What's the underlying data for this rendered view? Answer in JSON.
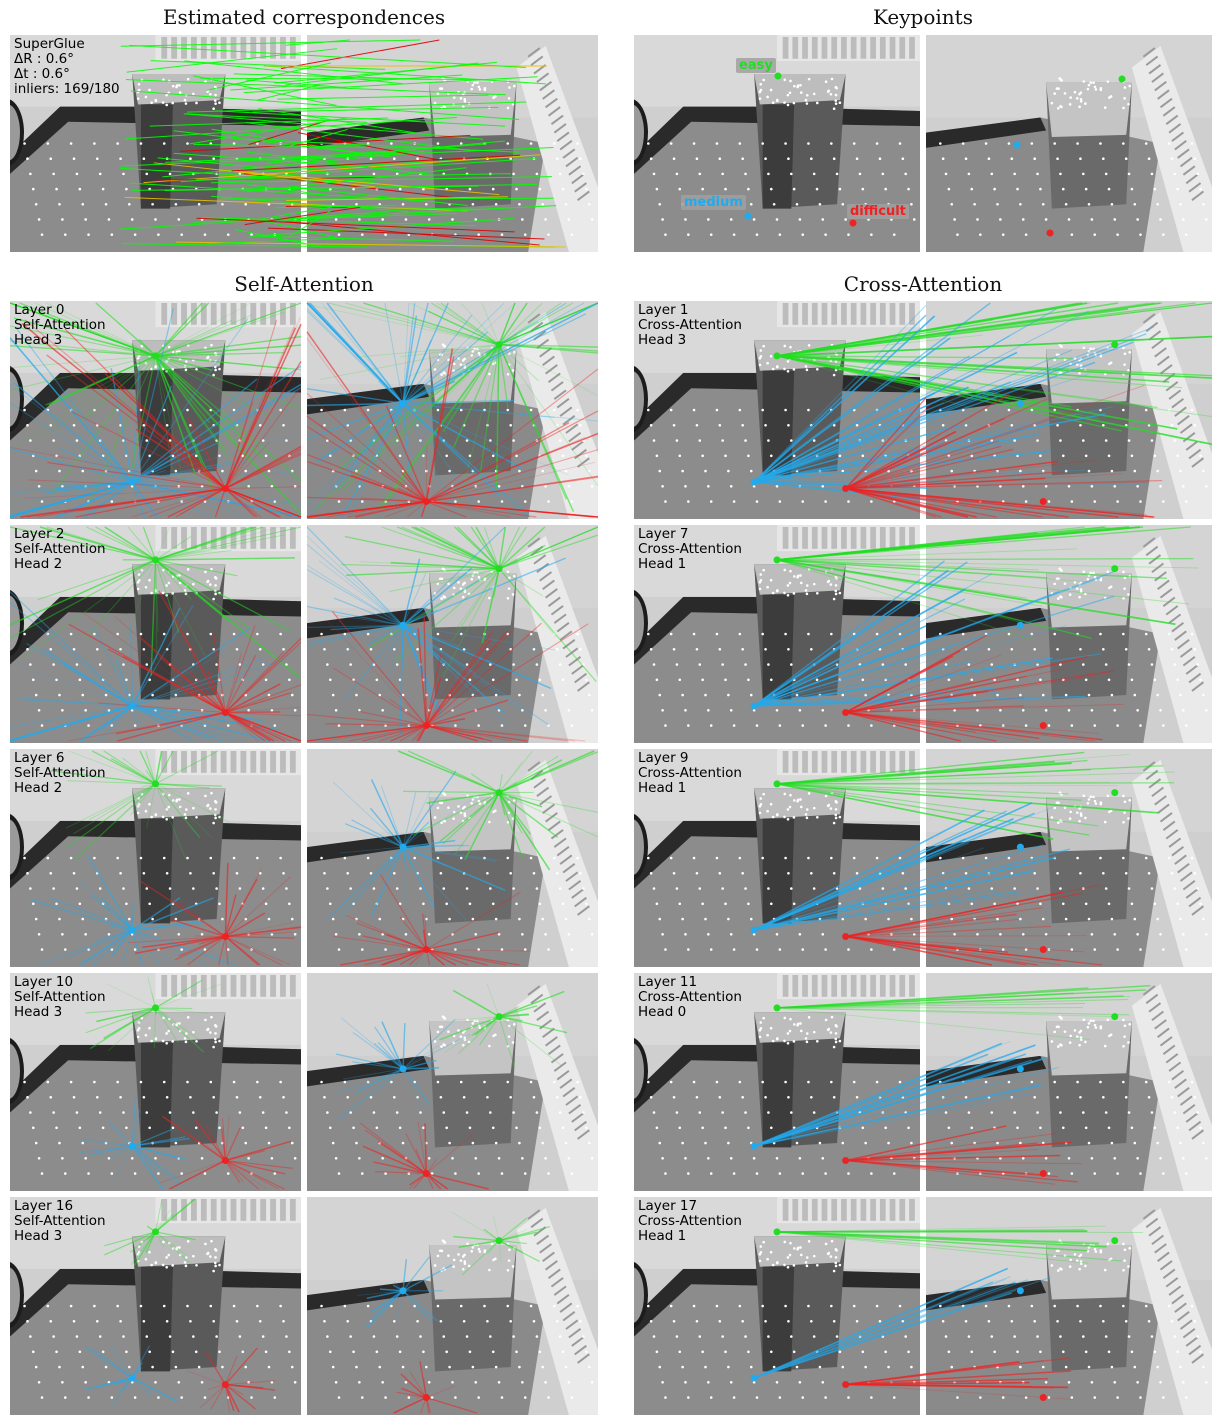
{
  "titles": {
    "estimated": "Estimated correspondences",
    "keypoints": "Keypoints",
    "self_attention": "Self-Attention",
    "cross_attention": "Cross-Attention"
  },
  "superglue": {
    "method": "SuperGlue",
    "delta_r": "ΔR : 0.6°",
    "delta_t": "Δt : 0.6°",
    "inliers": "inliers: 169/180"
  },
  "keypoint_labels": {
    "easy": "easy",
    "medium": "medium",
    "difficult": "difficult"
  },
  "self_rows": [
    {
      "layer": "Layer 0",
      "kind": "Self-Attention",
      "head": "Head 3"
    },
    {
      "layer": "Layer 2",
      "kind": "Self-Attention",
      "head": "Head 2"
    },
    {
      "layer": "Layer 6",
      "kind": "Self-Attention",
      "head": "Head 2"
    },
    {
      "layer": "Layer 10",
      "kind": "Self-Attention",
      "head": "Head 3"
    },
    {
      "layer": "Layer 16",
      "kind": "Self-Attention",
      "head": "Head 3"
    }
  ],
  "cross_rows": [
    {
      "layer": "Layer 1",
      "kind": "Cross-Attention",
      "head": "Head 3"
    },
    {
      "layer": "Layer 7",
      "kind": "Cross-Attention",
      "head": "Head 1"
    },
    {
      "layer": "Layer 9",
      "kind": "Cross-Attention",
      "head": "Head 1"
    },
    {
      "layer": "Layer 11",
      "kind": "Cross-Attention",
      "head": "Head 0"
    },
    {
      "layer": "Layer 17",
      "kind": "Cross-Attention",
      "head": "Head 1"
    }
  ],
  "colors": {
    "easy": "#22dd22",
    "medium": "#22aaee",
    "difficult": "#ee2222",
    "match_good": "#00ff00",
    "match_mid": "#e8c000",
    "match_bad": "#dd0000"
  }
}
